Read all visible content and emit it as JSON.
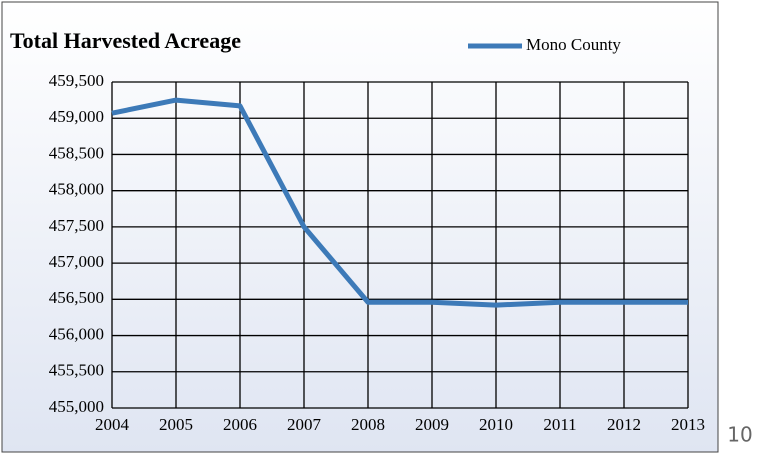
{
  "chart_data": {
    "type": "line",
    "title": "Total Harvested Acreage",
    "categories": [
      "2004",
      "2005",
      "2006",
      "2007",
      "2008",
      "2009",
      "2010",
      "2011",
      "2012",
      "2013"
    ],
    "series": [
      {
        "name": "Mono County",
        "color": "#3d7ab8",
        "values": [
          459070,
          459250,
          459170,
          457500,
          456460,
          456460,
          456420,
          456460,
          456460,
          456460
        ]
      }
    ],
    "ylim": [
      455000,
      459500
    ],
    "yticks": [
      {
        "value": 455000,
        "label": "455,000"
      },
      {
        "value": 455500,
        "label": "455,500"
      },
      {
        "value": 456000,
        "label": "456,000"
      },
      {
        "value": 456500,
        "label": "456,500"
      },
      {
        "value": 457000,
        "label": "457,000"
      },
      {
        "value": 457500,
        "label": "457,500"
      },
      {
        "value": 458000,
        "label": "458,000"
      },
      {
        "value": 458500,
        "label": "458,500"
      },
      {
        "value": 459000,
        "label": "459,000"
      },
      {
        "value": 459500,
        "label": "459,500"
      }
    ],
    "grid": true,
    "legend": "top-right"
  },
  "page_number": "10"
}
